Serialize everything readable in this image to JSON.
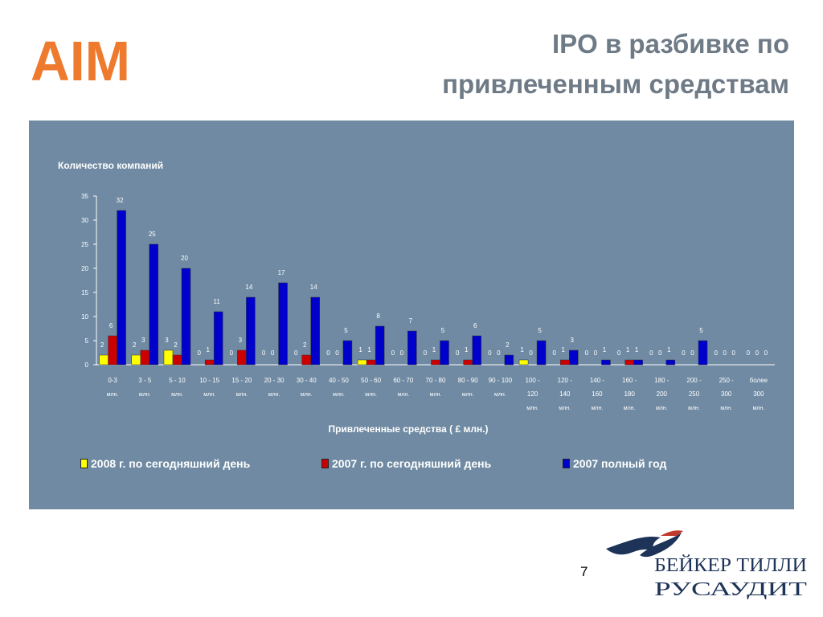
{
  "header": {
    "logo_text": "AIM",
    "title_line1": "IPO в разбивке по",
    "title_line2": "привлеченным средствам"
  },
  "colors": {
    "panel": "#6f8aa2",
    "series_2008": "#ffff00",
    "series_2007_partial": "#cc0000",
    "series_2007_full": "#0000cc",
    "aim_logo": "#ee7a2e",
    "brand_logo": "#1d3358"
  },
  "chart_data": {
    "type": "bar",
    "ylabel": "Количество компаний",
    "xlabel": "Привлеченные средства ( £ млн.)",
    "ylim": [
      0,
      35
    ],
    "yticks": [
      "0",
      "5",
      "10",
      "15",
      "20",
      "25",
      "30",
      "35"
    ],
    "grid": false,
    "legend_position": "bottom",
    "categories": [
      [
        "0-3",
        "млн."
      ],
      [
        "3 - 5",
        "млн."
      ],
      [
        "5 - 10",
        "млн."
      ],
      [
        "10 - 15",
        "млн."
      ],
      [
        "15 - 20",
        "млн."
      ],
      [
        "20 - 30",
        "млн."
      ],
      [
        "30 - 40",
        "млн."
      ],
      [
        "40 - 50",
        "млн."
      ],
      [
        "50 - 60",
        "млн."
      ],
      [
        "60 - 70",
        "млн."
      ],
      [
        "70 - 80",
        "млн."
      ],
      [
        "80 - 90",
        "млн."
      ],
      [
        "90 - 100",
        "млн."
      ],
      [
        "100 -",
        "120",
        "млн."
      ],
      [
        "120 -",
        "140",
        "млн."
      ],
      [
        "140 -",
        "160",
        "млн."
      ],
      [
        "160 -",
        "180",
        "млн."
      ],
      [
        "180 -",
        "200",
        "млн."
      ],
      [
        "200 -",
        "250",
        "млн."
      ],
      [
        "250 -",
        "300",
        "млн."
      ],
      [
        "более",
        "300",
        "млн."
      ]
    ],
    "series": [
      {
        "name": "2008 г. по сегодняшний день",
        "color": "#ffff00",
        "values": [
          2,
          2,
          3,
          0,
          0,
          0,
          0,
          0,
          1,
          0,
          0,
          0,
          0,
          1,
          0,
          0,
          0,
          0,
          0,
          0,
          0
        ]
      },
      {
        "name": "2007 г. по сегодняшний день",
        "color": "#cc0000",
        "values": [
          6,
          3,
          2,
          1,
          3,
          0,
          2,
          0,
          1,
          0,
          1,
          1,
          0,
          0,
          1,
          0,
          1,
          0,
          0,
          0,
          0
        ]
      },
      {
        "name": "2007 полный год",
        "color": "#0000cc",
        "values": [
          32,
          25,
          20,
          11,
          14,
          17,
          14,
          5,
          8,
          7,
          5,
          6,
          2,
          5,
          3,
          1,
          1,
          1,
          5,
          0,
          0
        ]
      }
    ]
  },
  "footer": {
    "page_number": "7",
    "brand_line1": "БЕЙКЕР ТИЛЛИ",
    "brand_line2": "РУСАУДИТ"
  }
}
